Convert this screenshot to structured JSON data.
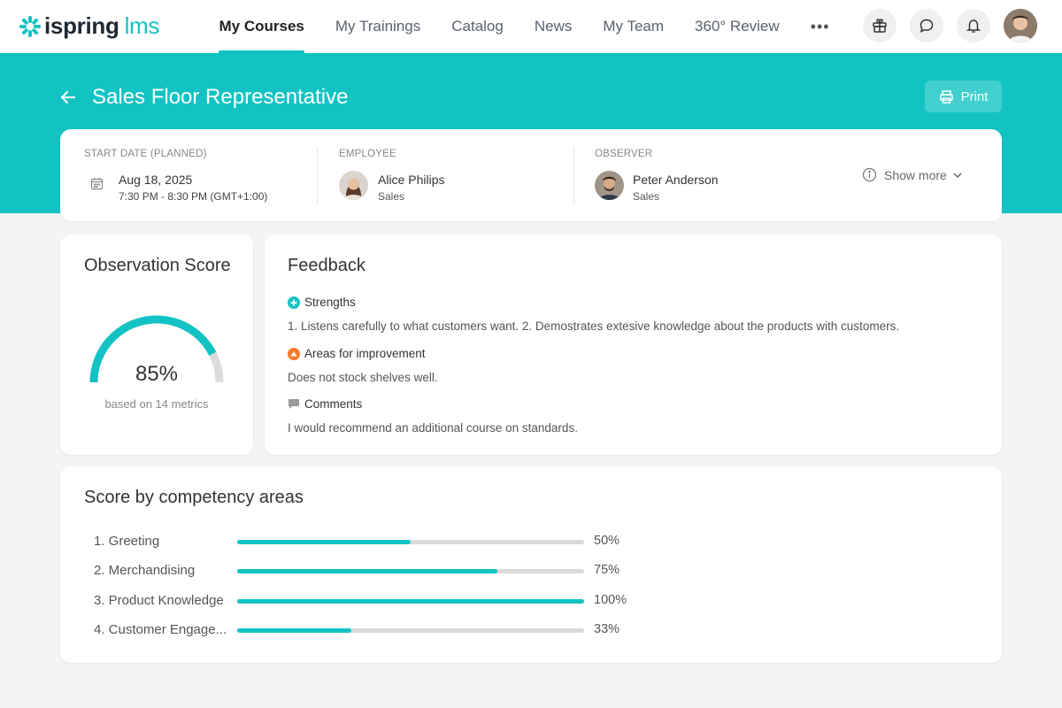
{
  "brand": {
    "name": "ispring",
    "suffix": "lms",
    "accent": "#13c3c3"
  },
  "nav": {
    "items": [
      {
        "label": "My Courses",
        "active": true
      },
      {
        "label": "My Trainings"
      },
      {
        "label": "Catalog"
      },
      {
        "label": "News"
      },
      {
        "label": "My Team"
      },
      {
        "label": "360° Review"
      }
    ],
    "more": "•••",
    "icons": [
      "gift-icon",
      "chat-icon",
      "bell-icon",
      "user-avatar"
    ]
  },
  "page": {
    "title": "Sales Floor Representative",
    "print_label": "Print"
  },
  "info": {
    "start_label": "START DATE (PLANNED)",
    "date": "Aug 18, 2025",
    "time": "7:30 PM - 8:30 PM (GMT+1:00)",
    "employee_label": "EMPLOYEE",
    "employee_name": "Alice Philips",
    "employee_dept": "Sales",
    "observer_label": "OBSERVER",
    "observer_name": "Peter Anderson",
    "observer_dept": "Sales",
    "show_more": "Show more"
  },
  "score": {
    "title": "Observation Score",
    "value": "85%",
    "fraction": 0.85,
    "subtitle": "based on 14 metrics"
  },
  "feedback": {
    "title": "Feedback",
    "strengths_label": "Strengths",
    "strengths_text": "1. Listens carefully to what customers want. 2. Demostrates extesive knowledge about the products with customers.",
    "improve_label": "Areas for improvement",
    "improve_text": "Does not stock shelves well.",
    "comments_label": "Comments",
    "comments_text": "I would recommend an additional course on standards."
  },
  "competency": {
    "title": "Score by competency areas",
    "items": [
      {
        "label": "1. Greeting",
        "pct": "50%",
        "fraction": 0.5
      },
      {
        "label": "2. Merchandising",
        "pct": "75%",
        "fraction": 0.75
      },
      {
        "label": "3. Product Knowledge",
        "pct": "100%",
        "fraction": 1.0
      },
      {
        "label": "4. Customer Engage...",
        "pct": "33%",
        "fraction": 0.33
      }
    ]
  }
}
